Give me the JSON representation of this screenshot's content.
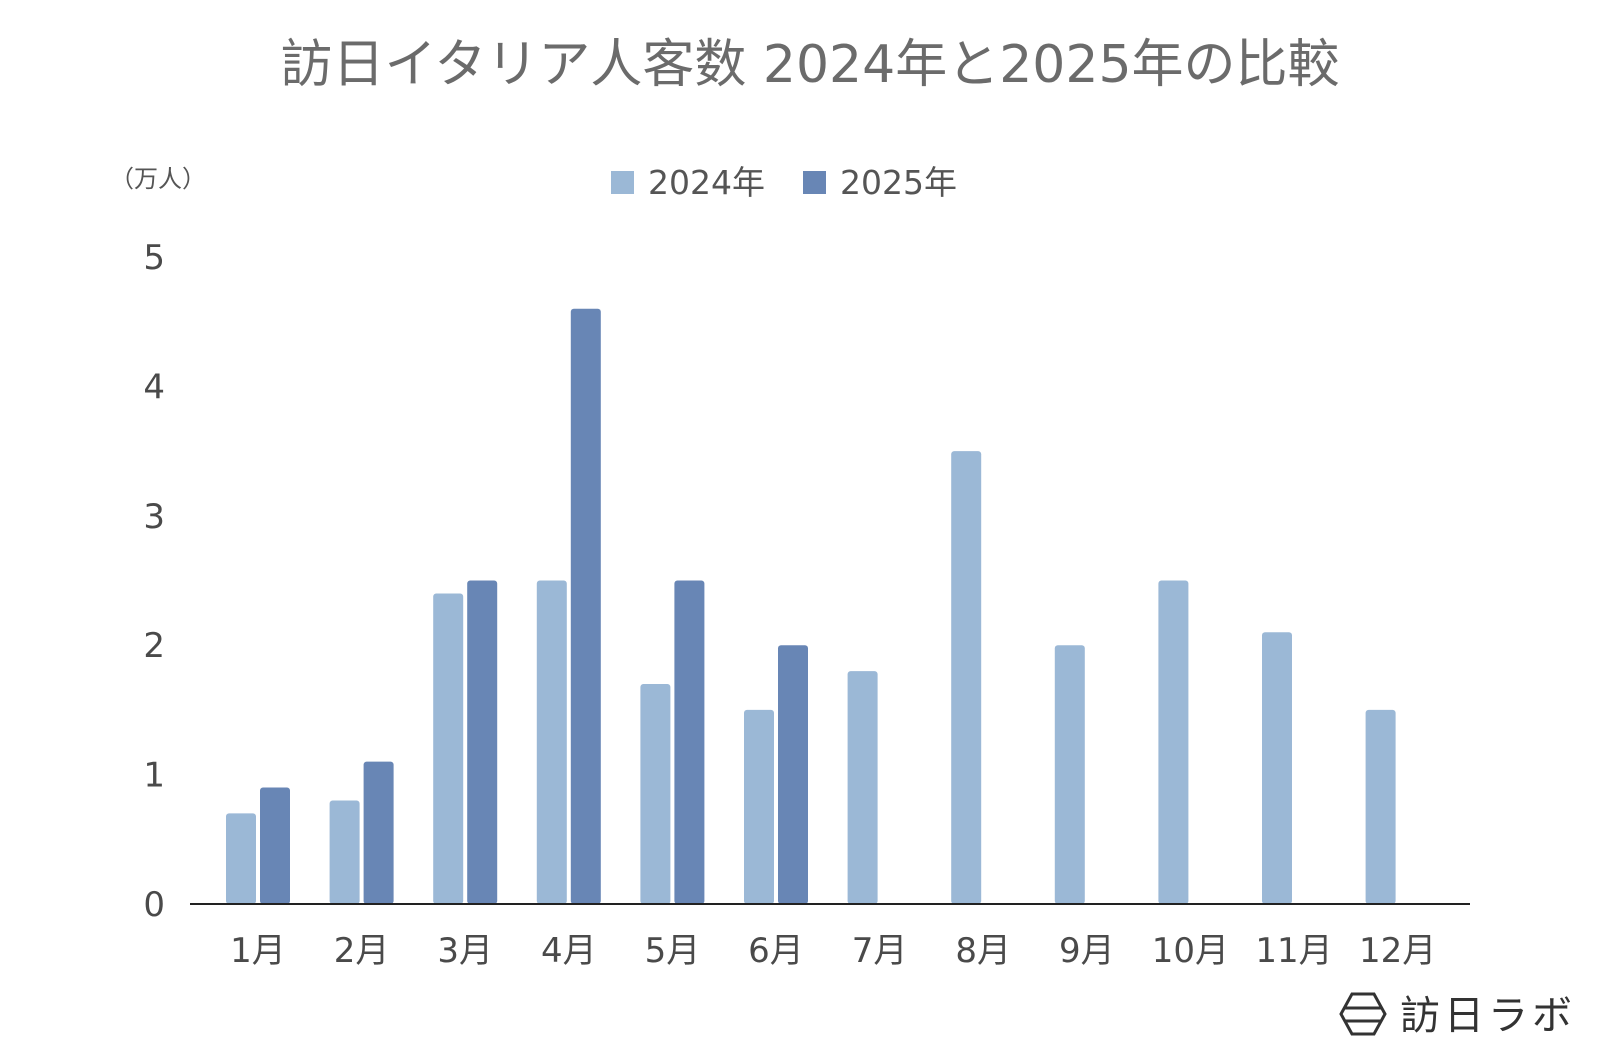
{
  "colors": {
    "series_2024": "#9bb8d6",
    "series_2025": "#6886b5",
    "axis": "#222222",
    "title": "#6b6b6b",
    "brand": "#333333"
  },
  "brand": {
    "name": "訪日ラボ",
    "icon": "hexagon-logo-icon"
  },
  "chart_data": {
    "type": "bar",
    "title": "訪日イタリア人客数 2024年と2025年の比較",
    "unit_label": "（万人）",
    "xlabel": "",
    "ylabel": "万人",
    "ylim": [
      0,
      5
    ],
    "yticks": [
      "0",
      "1",
      "2",
      "3",
      "4",
      "5"
    ],
    "grid": false,
    "legend_position": "top-center",
    "categories": [
      "1月",
      "2月",
      "3月",
      "4月",
      "5月",
      "6月",
      "7月",
      "8月",
      "9月",
      "10月",
      "11月",
      "12月"
    ],
    "series": [
      {
        "name": "2024年",
        "values": [
          0.7,
          0.8,
          2.4,
          2.5,
          1.7,
          1.5,
          1.8,
          3.5,
          2.0,
          2.5,
          2.1,
          1.5
        ]
      },
      {
        "name": "2025年",
        "values": [
          0.9,
          1.1,
          2.5,
          4.6,
          2.5,
          2.0,
          null,
          null,
          null,
          null,
          null,
          null
        ]
      }
    ]
  }
}
